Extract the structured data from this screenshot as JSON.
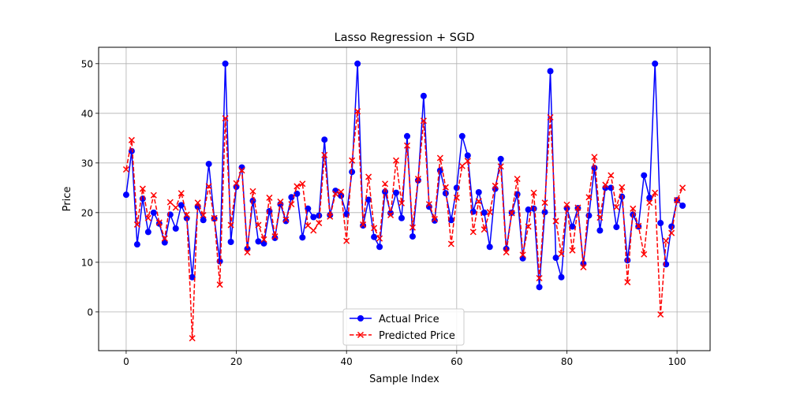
{
  "chart_data": {
    "type": "line",
    "title": "Lasso Regression + SGD",
    "xlabel": "Sample Index",
    "ylabel": "Price",
    "xlim": [
      -5,
      106
    ],
    "ylim": [
      -7.8,
      53.3
    ],
    "x_ticks": [
      0,
      20,
      40,
      60,
      80,
      100
    ],
    "y_ticks": [
      0,
      10,
      20,
      30,
      40,
      50
    ],
    "grid": true,
    "legend_position": "bottom-center",
    "series": [
      {
        "name": "Actual Price",
        "color": "#0000ff",
        "line_style": "solid",
        "marker": "circle",
        "values": [
          23.6,
          32.4,
          13.6,
          22.8,
          16.1,
          20.0,
          17.8,
          14.0,
          19.6,
          16.8,
          21.5,
          18.9,
          7.0,
          21.2,
          18.5,
          29.8,
          18.8,
          10.2,
          50.0,
          14.1,
          25.2,
          29.1,
          12.7,
          22.4,
          14.2,
          13.8,
          20.3,
          14.9,
          21.7,
          18.3,
          23.1,
          23.8,
          15.0,
          20.8,
          19.1,
          19.4,
          34.7,
          19.5,
          24.4,
          23.4,
          19.7,
          28.2,
          50.0,
          17.4,
          22.6,
          15.1,
          13.1,
          24.2,
          19.9,
          24.0,
          18.9,
          35.4,
          15.2,
          26.5,
          43.5,
          21.2,
          18.4,
          28.5,
          23.9,
          18.5,
          25.0,
          35.4,
          31.5,
          20.2,
          24.1,
          20.0,
          13.1,
          24.8,
          30.8,
          12.7,
          20.0,
          23.7,
          10.8,
          20.6,
          20.8,
          5.0,
          20.1,
          48.5,
          10.9,
          7.0,
          20.9,
          17.2,
          20.9,
          9.7,
          19.4,
          29.0,
          16.4,
          25.0,
          25.0,
          17.1,
          23.2,
          10.4,
          19.6,
          17.2,
          27.5,
          23.0,
          50.0,
          17.9,
          9.6,
          17.2,
          22.5,
          21.4
        ]
      },
      {
        "name": "Predicted Price",
        "color": "#ff0000",
        "line_style": "dashed",
        "marker": "x",
        "values": [
          28.7,
          34.6,
          17.6,
          24.8,
          18.9,
          23.5,
          18.0,
          14.8,
          22.1,
          21.0,
          23.9,
          19.6,
          -5.3,
          22.0,
          19.5,
          25.3,
          18.9,
          5.5,
          39.0,
          17.5,
          25.9,
          28.5,
          12.0,
          24.3,
          17.5,
          14.6,
          23.0,
          15.2,
          22.2,
          18.6,
          21.7,
          25.3,
          25.8,
          17.4,
          16.4,
          17.9,
          31.6,
          19.2,
          23.8,
          24.2,
          14.3,
          30.5,
          40.4,
          17.6,
          27.2,
          16.9,
          14.8,
          25.8,
          19.5,
          30.5,
          21.9,
          33.5,
          17.0,
          26.8,
          38.5,
          21.7,
          18.7,
          31.0,
          25.1,
          13.7,
          23.0,
          29.4,
          30.4,
          16.1,
          22.3,
          16.6,
          20.1,
          25.4,
          29.3,
          12.0,
          19.9,
          26.8,
          11.5,
          17.2,
          24.0,
          6.8,
          22.0,
          39.2,
          18.3,
          11.7,
          21.6,
          12.4,
          21.0,
          9.0,
          23.1,
          31.2,
          19.0,
          25.6,
          27.5,
          21.1,
          25.1,
          6.0,
          20.8,
          17.3,
          11.6,
          22.0,
          24.0,
          -0.5,
          14.3,
          15.9,
          22.5,
          25.0
        ]
      }
    ]
  }
}
